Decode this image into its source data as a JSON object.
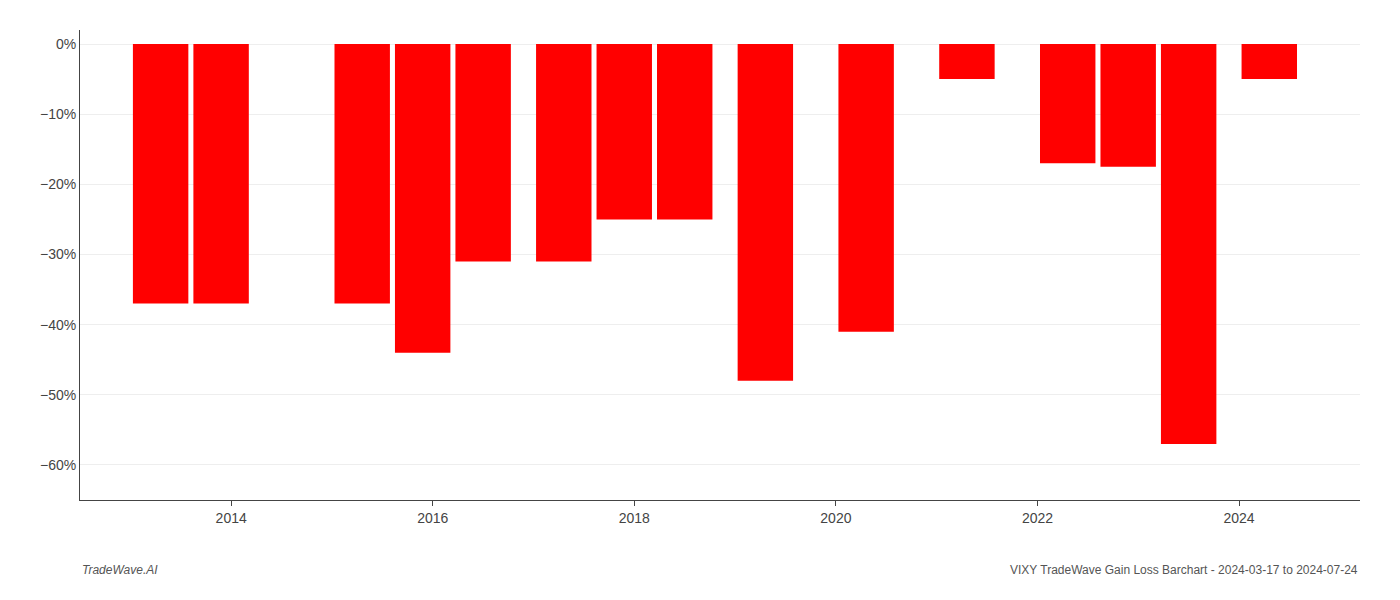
{
  "chart_data": {
    "type": "bar",
    "x": [
      2013.3,
      2013.9,
      2015.3,
      2015.9,
      2016.5,
      2017.3,
      2017.9,
      2018.5,
      2019.3,
      2020.3,
      2021.3,
      2022.3,
      2022.9,
      2023.5,
      2024.3
    ],
    "values": [
      -37.0,
      -37.0,
      -37.0,
      -44.0,
      -31.0,
      -31.0,
      -25.0,
      -25.0,
      -48.0,
      -41.0,
      -5.0,
      -17.0,
      -17.5,
      -57.0,
      -5.0
    ],
    "color": "#ff0000",
    "xlim": [
      2012.5,
      2025.2
    ],
    "xticks": [
      2014,
      2016,
      2018,
      2020,
      2022,
      2024
    ],
    "ylim": [
      -65,
      2
    ],
    "yticks": [
      {
        "value": 0,
        "label": "0%"
      },
      {
        "value": -10,
        "label": "−10%"
      },
      {
        "value": -20,
        "label": "−20%"
      },
      {
        "value": -30,
        "label": "−30%"
      },
      {
        "value": -40,
        "label": "−40%"
      },
      {
        "value": -50,
        "label": "−50%"
      },
      {
        "value": -60,
        "label": "−60%"
      }
    ],
    "grid": true,
    "annotations": [
      "TradeWave.AI",
      "VIXY TradeWave Gain Loss Barchart - 2024-03-17 to 2024-07-24"
    ]
  }
}
